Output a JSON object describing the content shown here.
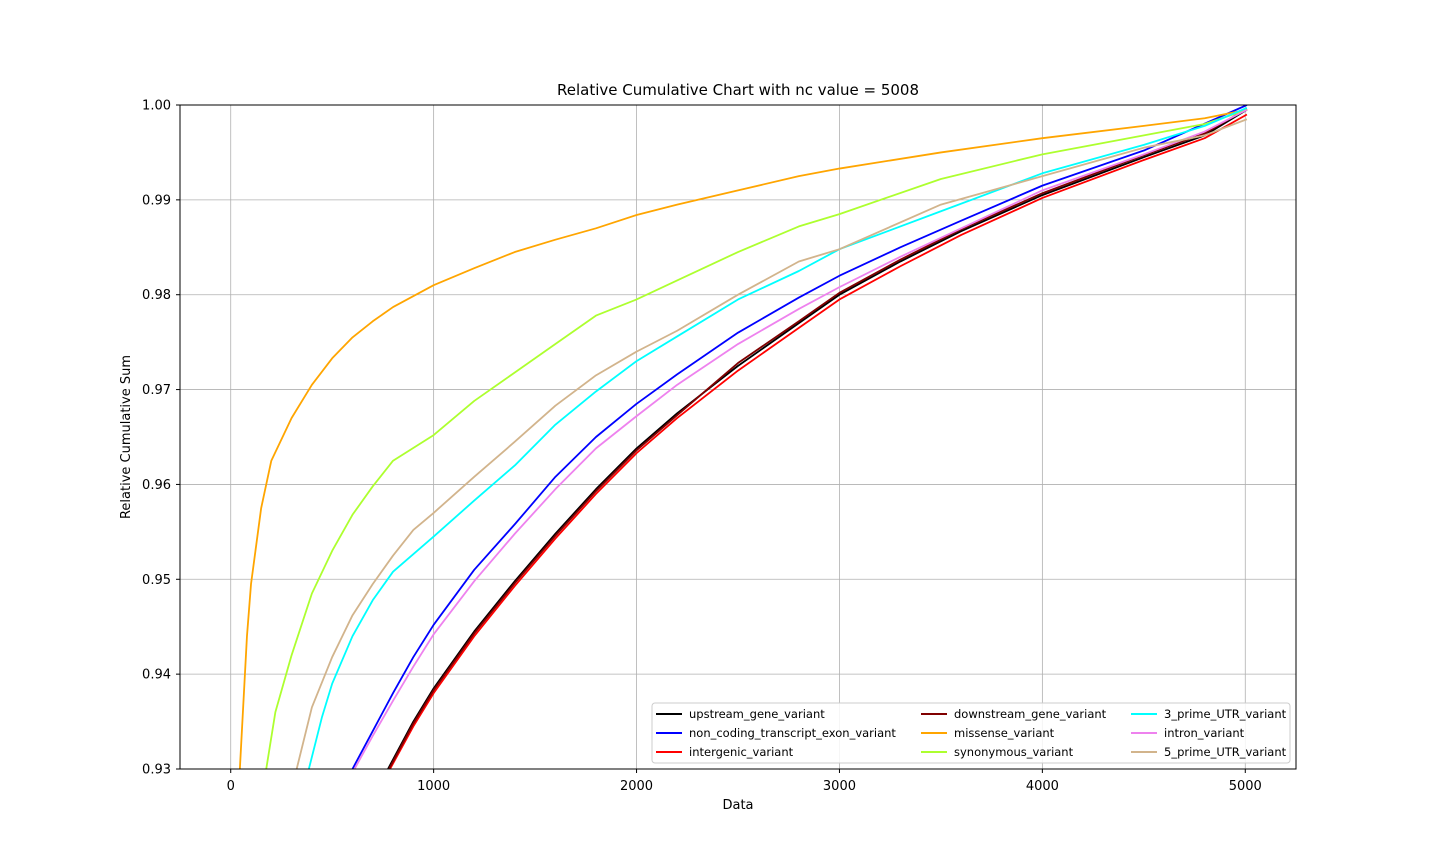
{
  "chart_data": {
    "type": "line",
    "title": "Relative Cumulative Chart with nc value = 5008",
    "xlabel": "Data",
    "ylabel": "Relative Cumulative Sum",
    "xlim": [
      -250,
      5250
    ],
    "ylim": [
      0.93,
      1.0
    ],
    "xticks": [
      0,
      1000,
      2000,
      3000,
      4000,
      5000
    ],
    "xtick_labels": [
      "0",
      "1000",
      "2000",
      "3000",
      "4000",
      "5000"
    ],
    "yticks": [
      0.93,
      0.94,
      0.95,
      0.96,
      0.97,
      0.98,
      0.99,
      1.0
    ],
    "ytick_labels": [
      "0.93",
      "0.94",
      "0.95",
      "0.96",
      "0.97",
      "0.98",
      "0.99",
      "1.00"
    ],
    "grid": true,
    "legend": {
      "placement": "lower-right",
      "columns": 3
    },
    "series": [
      {
        "name": "upstream_gene_variant",
        "color": "#000000",
        "x": [
          775,
          900,
          1000,
          1200,
          1400,
          1600,
          1800,
          2000,
          2200,
          2500,
          2800,
          3000,
          3300,
          3600,
          4000,
          4500,
          4800,
          5008
        ],
        "y": [
          0.93,
          0.935,
          0.9385,
          0.9445,
          0.9498,
          0.9548,
          0.9595,
          0.9638,
          0.9675,
          0.9725,
          0.977,
          0.98,
          0.9835,
          0.9867,
          0.9905,
          0.9945,
          0.9968,
          0.9995
        ]
      },
      {
        "name": "non_coding_transcript_exon_variant",
        "color": "#0000ff",
        "x": [
          600,
          700,
          800,
          900,
          1000,
          1200,
          1400,
          1600,
          1800,
          2000,
          2200,
          2500,
          2800,
          3000,
          3300,
          3600,
          4000,
          4500,
          5008
        ],
        "y": [
          0.93,
          0.934,
          0.938,
          0.9418,
          0.9452,
          0.951,
          0.9558,
          0.9608,
          0.965,
          0.9685,
          0.9716,
          0.976,
          0.9797,
          0.982,
          0.985,
          0.9878,
          0.9915,
          0.9952,
          1.0
        ]
      },
      {
        "name": "intergenic_variant",
        "color": "#ff0000",
        "x": [
          785,
          900,
          1000,
          1200,
          1400,
          1600,
          1800,
          2000,
          2200,
          2500,
          2800,
          3000,
          3300,
          3600,
          4000,
          4500,
          4800,
          5008
        ],
        "y": [
          0.93,
          0.9345,
          0.938,
          0.944,
          0.9493,
          0.9543,
          0.959,
          0.9633,
          0.967,
          0.972,
          0.9765,
          0.9795,
          0.983,
          0.9863,
          0.9902,
          0.9942,
          0.9965,
          0.999
        ]
      },
      {
        "name": "downstream_gene_variant",
        "color": "#800000",
        "x": [
          780,
          900,
          1000,
          1200,
          1400,
          1600,
          1800,
          2000,
          2200,
          2500,
          2800,
          3000,
          3300,
          3600,
          4000,
          4500,
          4800,
          5008
        ],
        "y": [
          0.93,
          0.9348,
          0.9383,
          0.9443,
          0.9496,
          0.9546,
          0.9593,
          0.9636,
          0.9673,
          0.9728,
          0.9772,
          0.9802,
          0.9837,
          0.9869,
          0.9907,
          0.9947,
          0.997,
          0.9996
        ]
      },
      {
        "name": "missense_variant",
        "color": "#ffa500",
        "x": [
          45,
          60,
          80,
          100,
          150,
          200,
          300,
          400,
          500,
          600,
          700,
          800,
          1000,
          1200,
          1400,
          1600,
          1800,
          2000,
          2200,
          2500,
          2800,
          3000,
          3500,
          4000,
          4500,
          4800,
          5008
        ],
        "y": [
          0.93,
          0.936,
          0.944,
          0.9495,
          0.9575,
          0.9625,
          0.967,
          0.9705,
          0.9733,
          0.9755,
          0.9772,
          0.9787,
          0.981,
          0.9828,
          0.9845,
          0.9858,
          0.987,
          0.9884,
          0.9895,
          0.991,
          0.9925,
          0.9933,
          0.995,
          0.9965,
          0.9978,
          0.9986,
          0.9995
        ]
      },
      {
        "name": "synonymous_variant",
        "color": "#adff2f",
        "x": [
          175,
          220,
          300,
          400,
          500,
          600,
          700,
          800,
          1000,
          1200,
          1400,
          1600,
          1800,
          2000,
          2200,
          2500,
          2800,
          3000,
          3500,
          4000,
          4500,
          4800,
          5008
        ],
        "y": [
          0.93,
          0.936,
          0.942,
          0.9485,
          0.953,
          0.9568,
          0.9598,
          0.9625,
          0.9652,
          0.9688,
          0.9718,
          0.9748,
          0.9778,
          0.9795,
          0.9815,
          0.9845,
          0.9872,
          0.9885,
          0.9922,
          0.9948,
          0.9968,
          0.998,
          0.9995
        ]
      },
      {
        "name": "3_prime_UTR_variant",
        "color": "#00ffff",
        "x": [
          385,
          450,
          500,
          600,
          700,
          800,
          1000,
          1200,
          1400,
          1600,
          1800,
          2000,
          2200,
          2500,
          2800,
          3000,
          3500,
          4000,
          4500,
          4800,
          5008
        ],
        "y": [
          0.93,
          0.9355,
          0.939,
          0.944,
          0.9478,
          0.9508,
          0.9545,
          0.9583,
          0.962,
          0.9663,
          0.9698,
          0.973,
          0.9756,
          0.9795,
          0.9825,
          0.9848,
          0.9888,
          0.9928,
          0.9958,
          0.9978,
          0.9997
        ]
      },
      {
        "name": "intron_variant",
        "color": "#ee82ee",
        "x": [
          610,
          700,
          800,
          900,
          1000,
          1200,
          1400,
          1600,
          1800,
          2000,
          2200,
          2500,
          2800,
          3000,
          3300,
          3600,
          4000,
          4500,
          4800,
          5008
        ],
        "y": [
          0.93,
          0.9335,
          0.9372,
          0.9408,
          0.9442,
          0.9498,
          0.9548,
          0.9595,
          0.9638,
          0.9672,
          0.9705,
          0.9748,
          0.9785,
          0.9808,
          0.984,
          0.987,
          0.991,
          0.9948,
          0.9972,
          0.9995
        ]
      },
      {
        "name": "5_prime_UTR_variant",
        "color": "#d2b48c",
        "x": [
          325,
          400,
          500,
          600,
          700,
          800,
          900,
          1000,
          1200,
          1400,
          1600,
          1800,
          2000,
          2200,
          2500,
          2800,
          3000,
          3500,
          4000,
          4500,
          4800,
          5008
        ],
        "y": [
          0.93,
          0.9365,
          0.9418,
          0.9462,
          0.9495,
          0.9525,
          0.9552,
          0.957,
          0.9608,
          0.9645,
          0.9683,
          0.9715,
          0.974,
          0.9762,
          0.98,
          0.9835,
          0.9848,
          0.9895,
          0.9925,
          0.9955,
          0.9968,
          0.9985
        ]
      }
    ]
  }
}
